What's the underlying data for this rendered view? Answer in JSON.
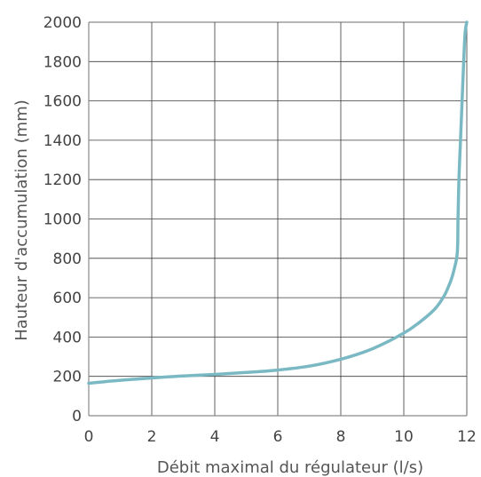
{
  "chart_data": {
    "type": "line",
    "title": "",
    "xlabel": "Débit maximal du régulateur (l/s)",
    "ylabel": "Hauteur d'accumulation (mm)",
    "xlim": [
      0,
      12
    ],
    "ylim": [
      0,
      2000
    ],
    "x_ticks": [
      "0",
      "2",
      "4",
      "6",
      "8",
      "10",
      "12"
    ],
    "y_ticks": [
      "0",
      "200",
      "400",
      "600",
      "800",
      "1000",
      "1200",
      "1400",
      "1600",
      "1800",
      "2000"
    ],
    "grid": true,
    "line_color": "#7ab9c4",
    "series": [
      {
        "x": [
          0,
          1,
          2,
          3,
          4,
          5,
          6,
          7,
          8,
          9,
          10,
          10.5,
          11,
          11.3,
          11.5,
          11.6,
          11.7,
          11.72,
          11.75,
          11.8,
          11.85,
          11.9,
          11.95,
          12
        ],
        "y": [
          165,
          180,
          192,
          202,
          210,
          220,
          232,
          252,
          287,
          340,
          420,
          475,
          545,
          615,
          690,
          745,
          830,
          1000,
          1200,
          1400,
          1600,
          1800,
          1950,
          2000
        ]
      }
    ]
  }
}
